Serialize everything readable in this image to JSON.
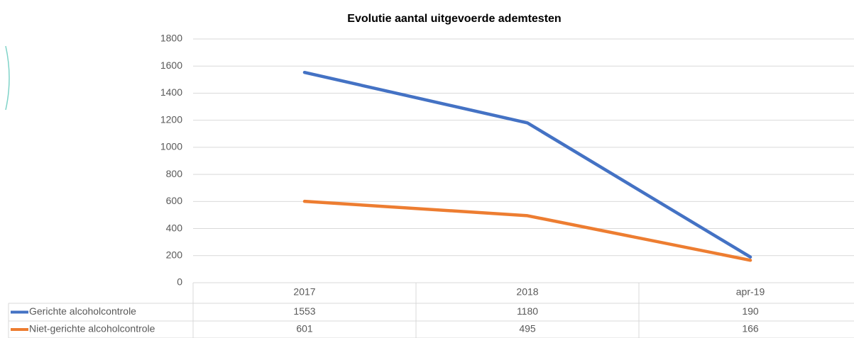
{
  "chart_data": {
    "type": "line",
    "title": "Evolutie aantal uitgevoerde ademtesten",
    "categories": [
      "2017",
      "2018",
      "apr-19"
    ],
    "series": [
      {
        "name": "Gerichte alcoholcontrole",
        "color": "#4472c4",
        "values": [
          1553,
          1180,
          190
        ]
      },
      {
        "name": "Niet-gerichte alcoholcontrole",
        "color": "#ed7d31",
        "values": [
          601,
          495,
          166
        ]
      }
    ],
    "ylim": [
      0,
      1800
    ],
    "yticks": [
      0,
      200,
      400,
      600,
      800,
      1000,
      1200,
      1400,
      1600,
      1800
    ],
    "grid": true
  }
}
